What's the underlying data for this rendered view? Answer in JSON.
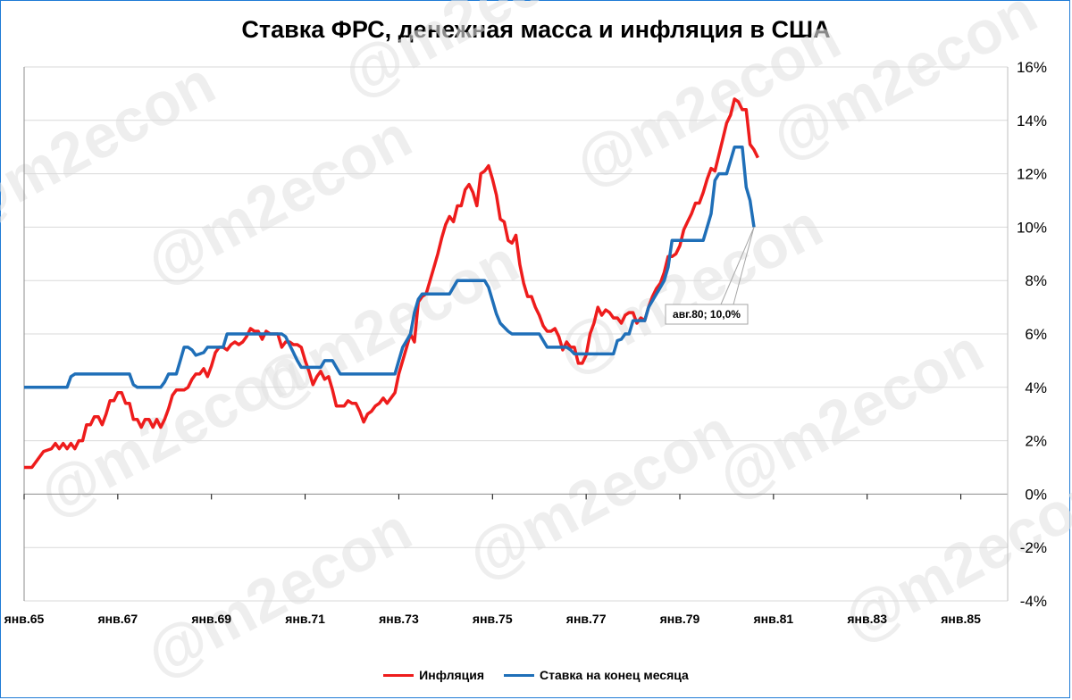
{
  "chart_data": {
    "type": "line",
    "title": "Ставка ФРС, денежная масса и инфляция в США",
    "watermark": "@m2econ",
    "x_tick_labels": [
      "янв.65",
      "янв.67",
      "янв.69",
      "янв.71",
      "янв.73",
      "янв.75",
      "янв.77",
      "янв.79",
      "янв.81",
      "янв.83",
      "янв.85"
    ],
    "y_tick_labels": [
      "16%",
      "14%",
      "12%",
      "10%",
      "8%",
      "6%",
      "4%",
      "2%",
      "0%",
      "-2%",
      "-4%"
    ],
    "ylim": [
      -4,
      16
    ],
    "xlim": [
      "1965-01",
      "1985-12"
    ],
    "grid": "horizontal",
    "legend_position": "bottom",
    "series": [
      {
        "name": "Инфляция",
        "color": "#ee1c1c",
        "points": [
          [
            "1965-01",
            1.0
          ],
          [
            "1965-03",
            1.0
          ],
          [
            "1965-06",
            1.6
          ],
          [
            "1965-08",
            1.7
          ],
          [
            "1965-09",
            1.9
          ],
          [
            "1965-10",
            1.7
          ],
          [
            "1965-11",
            1.9
          ],
          [
            "1965-12",
            1.7
          ],
          [
            "1966-01",
            1.9
          ],
          [
            "1966-02",
            1.7
          ],
          [
            "1966-03",
            2.0
          ],
          [
            "1966-04",
            2.0
          ],
          [
            "1966-05",
            2.6
          ],
          [
            "1966-06",
            2.6
          ],
          [
            "1966-07",
            2.9
          ],
          [
            "1966-08",
            2.9
          ],
          [
            "1966-09",
            2.6
          ],
          [
            "1966-10",
            3.0
          ],
          [
            "1966-11",
            3.5
          ],
          [
            "1966-12",
            3.5
          ],
          [
            "1967-01",
            3.8
          ],
          [
            "1967-02",
            3.8
          ],
          [
            "1967-03",
            3.4
          ],
          [
            "1967-04",
            3.4
          ],
          [
            "1967-05",
            2.8
          ],
          [
            "1967-06",
            2.8
          ],
          [
            "1967-07",
            2.5
          ],
          [
            "1967-08",
            2.8
          ],
          [
            "1967-09",
            2.8
          ],
          [
            "1967-10",
            2.5
          ],
          [
            "1967-11",
            2.8
          ],
          [
            "1967-12",
            2.5
          ],
          [
            "1968-01",
            2.8
          ],
          [
            "1968-02",
            3.2
          ],
          [
            "1968-03",
            3.7
          ],
          [
            "1968-04",
            3.9
          ],
          [
            "1968-05",
            3.9
          ],
          [
            "1968-06",
            3.9
          ],
          [
            "1968-07",
            4.0
          ],
          [
            "1968-08",
            4.3
          ],
          [
            "1968-09",
            4.5
          ],
          [
            "1968-10",
            4.5
          ],
          [
            "1968-11",
            4.7
          ],
          [
            "1968-12",
            4.4
          ],
          [
            "1969-01",
            4.8
          ],
          [
            "1969-02",
            5.3
          ],
          [
            "1969-03",
            5.5
          ],
          [
            "1969-04",
            5.5
          ],
          [
            "1969-05",
            5.4
          ],
          [
            "1969-06",
            5.6
          ],
          [
            "1969-07",
            5.7
          ],
          [
            "1969-08",
            5.6
          ],
          [
            "1969-09",
            5.7
          ],
          [
            "1969-10",
            5.9
          ],
          [
            "1969-11",
            6.2
          ],
          [
            "1969-12",
            6.1
          ],
          [
            "1970-01",
            6.1
          ],
          [
            "1970-02",
            5.8
          ],
          [
            "1970-03",
            6.1
          ],
          [
            "1970-04",
            6.0
          ],
          [
            "1970-05",
            6.0
          ],
          [
            "1970-06",
            6.0
          ],
          [
            "1970-07",
            5.5
          ],
          [
            "1970-08",
            5.7
          ],
          [
            "1970-09",
            5.7
          ],
          [
            "1970-10",
            5.6
          ],
          [
            "1970-11",
            5.6
          ],
          [
            "1970-12",
            5.5
          ],
          [
            "1971-01",
            5.0
          ],
          [
            "1971-02",
            4.6
          ],
          [
            "1971-03",
            4.1
          ],
          [
            "1971-04",
            4.4
          ],
          [
            "1971-05",
            4.6
          ],
          [
            "1971-06",
            4.3
          ],
          [
            "1971-07",
            4.4
          ],
          [
            "1971-08",
            3.9
          ],
          [
            "1971-09",
            3.3
          ],
          [
            "1971-10",
            3.3
          ],
          [
            "1971-11",
            3.3
          ],
          [
            "1971-12",
            3.5
          ],
          [
            "1972-01",
            3.4
          ],
          [
            "1972-02",
            3.4
          ],
          [
            "1972-03",
            3.1
          ],
          [
            "1972-04",
            2.7
          ],
          [
            "1972-05",
            3.0
          ],
          [
            "1972-06",
            3.1
          ],
          [
            "1972-07",
            3.3
          ],
          [
            "1972-08",
            3.4
          ],
          [
            "1972-09",
            3.6
          ],
          [
            "1972-10",
            3.4
          ],
          [
            "1972-11",
            3.6
          ],
          [
            "1972-12",
            3.8
          ],
          [
            "1973-01",
            4.5
          ],
          [
            "1973-02",
            5.0
          ],
          [
            "1973-03",
            5.5
          ],
          [
            "1973-04",
            6.0
          ],
          [
            "1973-05",
            5.7
          ],
          [
            "1973-06",
            7.2
          ],
          [
            "1973-07",
            7.4
          ],
          [
            "1973-08",
            7.5
          ],
          [
            "1973-09",
            8.0
          ],
          [
            "1973-10",
            8.5
          ],
          [
            "1973-11",
            9.0
          ],
          [
            "1973-12",
            9.6
          ],
          [
            "1974-01",
            10.1
          ],
          [
            "1974-02",
            10.4
          ],
          [
            "1974-03",
            10.2
          ],
          [
            "1974-04",
            10.8
          ],
          [
            "1974-05",
            10.8
          ],
          [
            "1974-06",
            11.4
          ],
          [
            "1974-07",
            11.6
          ],
          [
            "1974-08",
            11.3
          ],
          [
            "1974-09",
            10.8
          ],
          [
            "1974-10",
            12.0
          ],
          [
            "1974-11",
            12.1
          ],
          [
            "1974-12",
            12.3
          ],
          [
            "1975-01",
            11.8
          ],
          [
            "1975-02",
            11.2
          ],
          [
            "1975-03",
            10.3
          ],
          [
            "1975-04",
            10.2
          ],
          [
            "1975-05",
            9.5
          ],
          [
            "1975-06",
            9.4
          ],
          [
            "1975-07",
            9.7
          ],
          [
            "1975-08",
            8.6
          ],
          [
            "1975-09",
            7.9
          ],
          [
            "1975-10",
            7.4
          ],
          [
            "1975-11",
            7.4
          ],
          [
            "1975-12",
            7.0
          ],
          [
            "1976-01",
            6.7
          ],
          [
            "1976-02",
            6.3
          ],
          [
            "1976-03",
            6.1
          ],
          [
            "1976-04",
            6.1
          ],
          [
            "1976-05",
            6.2
          ],
          [
            "1976-06",
            5.9
          ],
          [
            "1976-07",
            5.4
          ],
          [
            "1976-08",
            5.7
          ],
          [
            "1976-09",
            5.5
          ],
          [
            "1976-10",
            5.5
          ],
          [
            "1976-11",
            4.9
          ],
          [
            "1976-12",
            4.9
          ],
          [
            "1977-01",
            5.2
          ],
          [
            "1977-02",
            6.0
          ],
          [
            "1977-03",
            6.4
          ],
          [
            "1977-04",
            7.0
          ],
          [
            "1977-05",
            6.7
          ],
          [
            "1977-06",
            6.9
          ],
          [
            "1977-07",
            6.8
          ],
          [
            "1977-08",
            6.6
          ],
          [
            "1977-09",
            6.6
          ],
          [
            "1977-10",
            6.4
          ],
          [
            "1977-11",
            6.7
          ],
          [
            "1977-12",
            6.8
          ],
          [
            "1978-01",
            6.8
          ],
          [
            "1978-02",
            6.4
          ],
          [
            "1978-03",
            6.6
          ],
          [
            "1978-04",
            6.5
          ],
          [
            "1978-05",
            7.0
          ],
          [
            "1978-06",
            7.4
          ],
          [
            "1978-07",
            7.7
          ],
          [
            "1978-08",
            7.9
          ],
          [
            "1978-09",
            8.3
          ],
          [
            "1978-10",
            8.9
          ],
          [
            "1978-11",
            8.9
          ],
          [
            "1978-12",
            9.0
          ],
          [
            "1979-01",
            9.3
          ],
          [
            "1979-02",
            9.9
          ],
          [
            "1979-03",
            10.2
          ],
          [
            "1979-04",
            10.5
          ],
          [
            "1979-05",
            10.9
          ],
          [
            "1979-06",
            10.9
          ],
          [
            "1979-07",
            11.3
          ],
          [
            "1979-08",
            11.8
          ],
          [
            "1979-09",
            12.2
          ],
          [
            "1979-10",
            12.1
          ],
          [
            "1979-11",
            12.7
          ],
          [
            "1979-12",
            13.3
          ],
          [
            "1980-01",
            13.9
          ],
          [
            "1980-02",
            14.2
          ],
          [
            "1980-03",
            14.8
          ],
          [
            "1980-04",
            14.7
          ],
          [
            "1980-05",
            14.4
          ],
          [
            "1980-06",
            14.4
          ],
          [
            "1980-07",
            13.1
          ],
          [
            "1980-08",
            12.9
          ],
          [
            "1980-09",
            12.6
          ]
        ]
      },
      {
        "name": "Ставка на конец месяца",
        "color": "#1f6fb8",
        "points": [
          [
            "1965-01",
            4.0
          ],
          [
            "1965-12",
            4.0
          ],
          [
            "1966-01",
            4.4
          ],
          [
            "1966-02",
            4.5
          ],
          [
            "1967-04",
            4.5
          ],
          [
            "1967-05",
            4.1
          ],
          [
            "1967-06",
            4.0
          ],
          [
            "1967-12",
            4.0
          ],
          [
            "1968-01",
            4.2
          ],
          [
            "1968-02",
            4.5
          ],
          [
            "1968-04",
            4.5
          ],
          [
            "1968-05",
            5.0
          ],
          [
            "1968-06",
            5.5
          ],
          [
            "1968-07",
            5.5
          ],
          [
            "1968-08",
            5.4
          ],
          [
            "1968-09",
            5.2
          ],
          [
            "1968-11",
            5.3
          ],
          [
            "1968-12",
            5.5
          ],
          [
            "1969-04",
            5.5
          ],
          [
            "1969-05",
            6.0
          ],
          [
            "1970-06",
            6.0
          ],
          [
            "1970-07",
            6.0
          ],
          [
            "1970-08",
            5.9
          ],
          [
            "1970-09",
            5.6
          ],
          [
            "1970-10",
            5.3
          ],
          [
            "1970-11",
            5.0
          ],
          [
            "1970-12",
            4.75
          ],
          [
            "1971-05",
            4.75
          ],
          [
            "1971-06",
            5.0
          ],
          [
            "1971-08",
            5.0
          ],
          [
            "1971-09",
            4.75
          ],
          [
            "1971-10",
            4.5
          ],
          [
            "1972-12",
            4.5
          ],
          [
            "1973-01",
            5.0
          ],
          [
            "1973-02",
            5.5
          ],
          [
            "1973-03",
            5.75
          ],
          [
            "1973-04",
            6.0
          ],
          [
            "1973-05",
            6.8
          ],
          [
            "1973-06",
            7.3
          ],
          [
            "1973-07",
            7.5
          ],
          [
            "1974-02",
            7.5
          ],
          [
            "1974-03",
            7.75
          ],
          [
            "1974-04",
            8.0
          ],
          [
            "1974-11",
            8.0
          ],
          [
            "1974-12",
            7.75
          ],
          [
            "1975-01",
            7.25
          ],
          [
            "1975-02",
            6.75
          ],
          [
            "1975-03",
            6.4
          ],
          [
            "1975-04",
            6.25
          ],
          [
            "1975-05",
            6.1
          ],
          [
            "1975-06",
            6.0
          ],
          [
            "1976-01",
            6.0
          ],
          [
            "1976-02",
            5.75
          ],
          [
            "1976-03",
            5.5
          ],
          [
            "1976-08",
            5.5
          ],
          [
            "1976-09",
            5.4
          ],
          [
            "1976-10",
            5.25
          ],
          [
            "1977-08",
            5.25
          ],
          [
            "1977-09",
            5.75
          ],
          [
            "1977-10",
            5.8
          ],
          [
            "1977-11",
            6.0
          ],
          [
            "1977-12",
            6.0
          ],
          [
            "1978-01",
            6.5
          ],
          [
            "1978-04",
            6.5
          ],
          [
            "1978-05",
            7.0
          ],
          [
            "1978-06",
            7.25
          ],
          [
            "1978-07",
            7.5
          ],
          [
            "1978-08",
            7.75
          ],
          [
            "1978-09",
            8.0
          ],
          [
            "1978-10",
            8.5
          ],
          [
            "1978-11",
            9.5
          ],
          [
            "1979-07",
            9.5
          ],
          [
            "1979-08",
            10.0
          ],
          [
            "1979-09",
            10.5
          ],
          [
            "1979-10",
            11.75
          ],
          [
            "1979-11",
            12.0
          ],
          [
            "1980-01",
            12.0
          ],
          [
            "1980-02",
            12.5
          ],
          [
            "1980-03",
            13.0
          ],
          [
            "1980-05",
            13.0
          ],
          [
            "1980-06",
            11.5
          ],
          [
            "1980-07",
            11.0
          ],
          [
            "1980-08",
            10.0
          ]
        ]
      }
    ],
    "annotations": [
      {
        "text": "авг.80; 10,0%",
        "x": "1980-08",
        "y": 10.0
      }
    ]
  }
}
